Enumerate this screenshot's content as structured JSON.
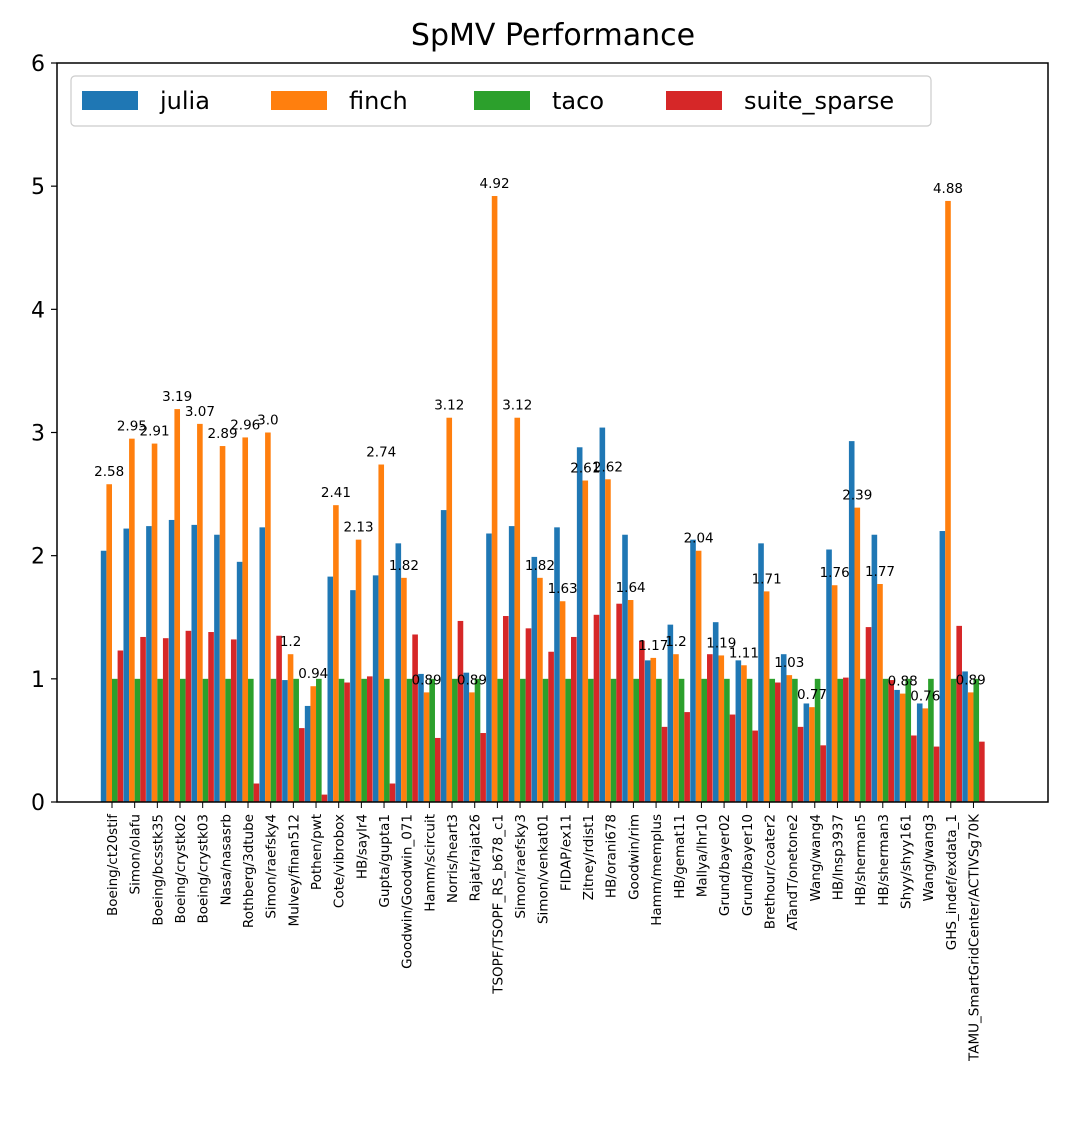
{
  "chart_data": {
    "type": "bar",
    "title": "SpMV Performance",
    "xlabel": "",
    "ylabel": "",
    "ylim": [
      0,
      6
    ],
    "yticks": [
      "0",
      "1",
      "2",
      "3",
      "4",
      "5",
      "6"
    ],
    "grid": false,
    "legend_position": "top-left",
    "categories": [
      "Boeing/ct20stif",
      "Simon/olafu",
      "Boeing/bcsstk35",
      "Boeing/crystk02",
      "Boeing/crystk03",
      "Nasa/nasasrb",
      "Rothberg/3dtube",
      "Simon/raefsky4",
      "Mulvey/finan512",
      "Pothen/pwt",
      "Cote/vibrobox",
      "HB/saylr4",
      "Gupta/gupta1",
      "Goodwin/Goodwin_071",
      "Hamm/scircuit",
      "Norris/heart3",
      "Rajat/rajat26",
      "TSOPF/TSOPF_RS_b678_c1",
      "Simon/raefsky3",
      "Simon/venkat01",
      "FIDAP/ex11",
      "Zitney/rdist1",
      "HB/orani678",
      "Goodwin/rim",
      "Hamm/memplus",
      "HB/gemat11",
      "Mallya/lhr10",
      "Grund/bayer02",
      "Grund/bayer10",
      "Brethour/coater2",
      "ATandT/onetone2",
      "Wang/wang4",
      "HB/lnsp3937",
      "HB/sherman5",
      "HB/sherman3",
      "Shyy/shyy161",
      "Wang/wang3",
      "GHS_indef/exdata_1",
      "TAMU_SmartGridCenter/ACTIVSg70K"
    ],
    "series": [
      {
        "name": "julia",
        "color": "#1f77b4",
        "values": [
          2.04,
          2.22,
          2.24,
          2.29,
          2.25,
          2.17,
          1.95,
          2.23,
          0.99,
          0.78,
          1.83,
          1.72,
          1.84,
          2.1,
          1.04,
          2.37,
          1.05,
          2.18,
          2.24,
          1.99,
          2.23,
          2.88,
          3.04,
          2.17,
          1.15,
          1.44,
          2.13,
          1.46,
          1.15,
          2.1,
          1.2,
          0.8,
          2.05,
          2.93,
          2.17,
          0.91,
          0.8,
          2.2,
          1.06
        ]
      },
      {
        "name": "finch",
        "color": "#ff7f0e",
        "values": [
          2.58,
          2.95,
          2.91,
          3.19,
          3.07,
          2.89,
          2.96,
          3.0,
          1.2,
          0.94,
          2.41,
          2.13,
          2.74,
          1.82,
          0.89,
          3.12,
          0.89,
          4.92,
          3.12,
          1.82,
          1.63,
          2.61,
          2.62,
          1.64,
          1.17,
          1.2,
          2.04,
          1.19,
          1.11,
          1.71,
          1.03,
          0.77,
          1.76,
          2.39,
          1.77,
          0.88,
          0.76,
          4.88,
          0.89
        ]
      },
      {
        "name": "taco",
        "color": "#2ca02c",
        "values": [
          1.0,
          1.0,
          1.0,
          1.0,
          1.0,
          1.0,
          1.0,
          1.0,
          1.0,
          1.0,
          1.0,
          1.0,
          1.0,
          1.0,
          1.0,
          1.0,
          1.0,
          1.0,
          1.0,
          1.0,
          1.0,
          1.0,
          1.0,
          1.0,
          1.0,
          1.0,
          1.0,
          1.0,
          1.0,
          1.0,
          1.0,
          1.0,
          1.0,
          1.0,
          1.0,
          1.0,
          1.0,
          1.0,
          1.0
        ]
      },
      {
        "name": "suite_sparse",
        "color": "#d62728",
        "values": [
          1.23,
          1.34,
          1.33,
          1.39,
          1.38,
          1.32,
          0.15,
          1.35,
          0.6,
          0.06,
          0.97,
          1.02,
          0.15,
          1.36,
          0.52,
          1.47,
          0.56,
          1.51,
          1.41,
          1.22,
          1.34,
          1.52,
          1.61,
          1.31,
          0.61,
          0.73,
          1.2,
          0.71,
          0.58,
          0.97,
          0.61,
          0.46,
          1.01,
          1.42,
          0.99,
          0.54,
          0.45,
          1.43,
          0.49
        ]
      }
    ],
    "data_labels": [
      "2.58",
      "2.95",
      "2.91",
      "3.19",
      "3.07",
      "2.89",
      "2.96",
      "3.0",
      "1.2",
      "0.94",
      "2.41",
      "2.13",
      "2.74",
      "1.82",
      "0.89",
      "3.12",
      "0.89",
      "4.92",
      "3.12",
      "1.82",
      "1.63",
      "2.61",
      "2.62",
      "1.64",
      "1.17",
      "1.2",
      "2.04",
      "1.19",
      "1.11",
      "1.71",
      "1.03",
      "0.77",
      "1.76",
      "2.39",
      "1.77",
      "0.88",
      "0.76",
      "4.88",
      "0.89"
    ]
  }
}
